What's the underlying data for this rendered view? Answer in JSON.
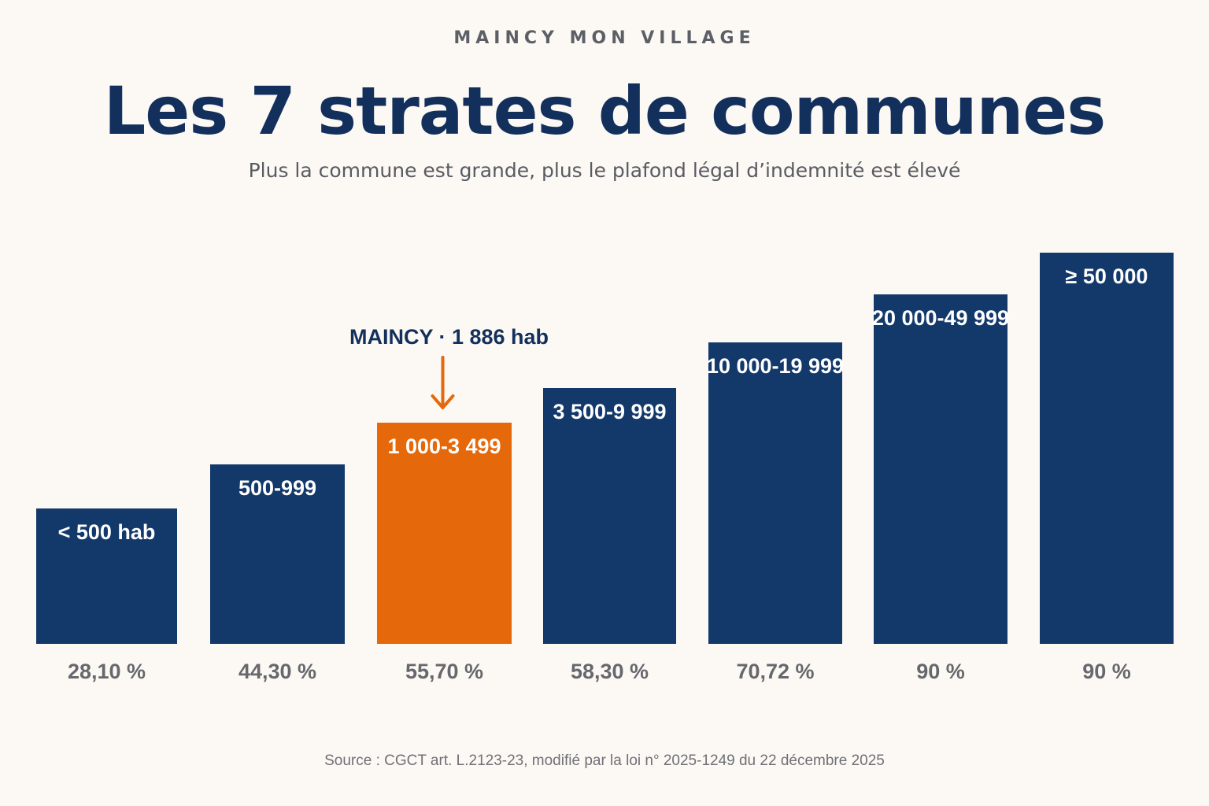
{
  "header": {
    "kicker": "MAINCY MON VILLAGE",
    "title": "Les 7 strates de communes",
    "subtitle": "Plus la commune est grande, plus le plafond légal d’indemnité est élevé"
  },
  "footer": {
    "source": "Source : CGCT art. L.2123-23, modifié par la loi n° 2025-1249 du 22 décembre 2025"
  },
  "colors": {
    "bar": "#13396b",
    "highlight": "#e5680a",
    "title": "#13305d",
    "background": "#fcf9f4"
  },
  "chart_data": {
    "type": "bar",
    "categories": [
      "< 500 hab",
      "500-999",
      "1 000-3 499",
      "3 500-9 999",
      "10 000-19 999",
      "20 000-49 999",
      "≥ 50 000"
    ],
    "values": [
      28.1,
      44.3,
      55.7,
      58.3,
      70.72,
      90,
      90
    ],
    "value_labels": [
      "28,10 %",
      "44,30 %",
      "55,70 %",
      "58,30 %",
      "70,72 %",
      "90 %",
      "90 %"
    ],
    "highlight_index": 2,
    "annotation": {
      "text": "MAINCY · 1 886 hab",
      "category_index": 2
    },
    "grid": false,
    "legend": "none"
  }
}
